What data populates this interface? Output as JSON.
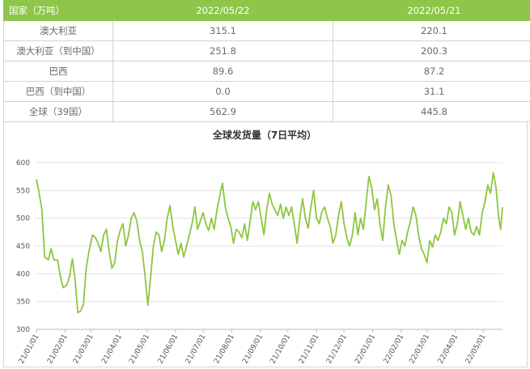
{
  "table": {
    "headers": [
      "国家（万吨）",
      "2022/05/22",
      "2022/05/21"
    ],
    "rows": [
      [
        "澳大利亚",
        "315.1",
        "220.1"
      ],
      [
        "澳大利亚（到中国）",
        "251.8",
        "200.3"
      ],
      [
        "巴西",
        "89.6",
        "87.2"
      ],
      [
        "巴西（到中国）",
        "0.0",
        "31.1"
      ],
      [
        "全球（39国）",
        "562.9",
        "445.8"
      ]
    ]
  },
  "colors": {
    "header_bg": "#8dc649",
    "line": "#8dc63f",
    "grid": "#e3e3e3"
  },
  "chart_data": {
    "type": "line",
    "title": "全球发货量（7日平均）",
    "xlabel": "",
    "ylabel": "",
    "ylim": [
      300,
      600
    ],
    "yticks": [
      300,
      350,
      400,
      450,
      500,
      550,
      600
    ],
    "x_tick_labels": [
      "21/01/01",
      "21/02/01",
      "21/03/01",
      "21/04/01",
      "21/05/01",
      "21/06/01",
      "21/07/01",
      "21/08/01",
      "21/09/01",
      "21/10/01",
      "21/11/01",
      "21/12/01",
      "22/01/01",
      "22/02/01",
      "22/03/01",
      "22/04/01",
      "22/05/01"
    ],
    "grid": true,
    "x_range": [
      "2021-01-01",
      "2022-05-22"
    ],
    "series": [
      {
        "values": [
          [
            "2021-01-01",
            570
          ],
          [
            "2021-01-04",
            545
          ],
          [
            "2021-01-07",
            515
          ],
          [
            "2021-01-10",
            430
          ],
          [
            "2021-01-14",
            425
          ],
          [
            "2021-01-17",
            445
          ],
          [
            "2021-01-20",
            425
          ],
          [
            "2021-01-24",
            425
          ],
          [
            "2021-01-27",
            395
          ],
          [
            "2021-01-30",
            375
          ],
          [
            "2021-02-03",
            380
          ],
          [
            "2021-02-06",
            395
          ],
          [
            "2021-02-09",
            427
          ],
          [
            "2021-02-12",
            390
          ],
          [
            "2021-02-15",
            330
          ],
          [
            "2021-02-18",
            333
          ],
          [
            "2021-02-21",
            345
          ],
          [
            "2021-02-24",
            410
          ],
          [
            "2021-02-27",
            440
          ],
          [
            "2021-03-03",
            470
          ],
          [
            "2021-03-06",
            465
          ],
          [
            "2021-03-09",
            455
          ],
          [
            "2021-03-12",
            440
          ],
          [
            "2021-03-15",
            470
          ],
          [
            "2021-03-18",
            480
          ],
          [
            "2021-03-21",
            440
          ],
          [
            "2021-03-24",
            410
          ],
          [
            "2021-03-27",
            420
          ],
          [
            "2021-03-30",
            460
          ],
          [
            "2021-04-02",
            478
          ],
          [
            "2021-04-05",
            490
          ],
          [
            "2021-04-08",
            450
          ],
          [
            "2021-04-11",
            470
          ],
          [
            "2021-04-14",
            500
          ],
          [
            "2021-04-17",
            510
          ],
          [
            "2021-04-20",
            495
          ],
          [
            "2021-04-23",
            460
          ],
          [
            "2021-04-26",
            440
          ],
          [
            "2021-04-29",
            395
          ],
          [
            "2021-05-02",
            343
          ],
          [
            "2021-05-05",
            395
          ],
          [
            "2021-05-08",
            450
          ],
          [
            "2021-05-11",
            475
          ],
          [
            "2021-05-14",
            470
          ],
          [
            "2021-05-17",
            440
          ],
          [
            "2021-05-20",
            460
          ],
          [
            "2021-05-23",
            500
          ],
          [
            "2021-05-26",
            523
          ],
          [
            "2021-05-29",
            485
          ],
          [
            "2021-06-01",
            460
          ],
          [
            "2021-06-04",
            435
          ],
          [
            "2021-06-07",
            455
          ],
          [
            "2021-06-10",
            430
          ],
          [
            "2021-06-13",
            450
          ],
          [
            "2021-06-16",
            470
          ],
          [
            "2021-06-19",
            490
          ],
          [
            "2021-06-22",
            520
          ],
          [
            "2021-06-25",
            480
          ],
          [
            "2021-06-28",
            495
          ],
          [
            "2021-07-01",
            510
          ],
          [
            "2021-07-04",
            490
          ],
          [
            "2021-07-07",
            478
          ],
          [
            "2021-07-10",
            500
          ],
          [
            "2021-07-13",
            480
          ],
          [
            "2021-07-16",
            515
          ],
          [
            "2021-07-19",
            540
          ],
          [
            "2021-07-22",
            563
          ],
          [
            "2021-07-25",
            520
          ],
          [
            "2021-07-28",
            500
          ],
          [
            "2021-07-31",
            485
          ],
          [
            "2021-08-03",
            455
          ],
          [
            "2021-08-06",
            480
          ],
          [
            "2021-08-09",
            475
          ],
          [
            "2021-08-12",
            465
          ],
          [
            "2021-08-15",
            490
          ],
          [
            "2021-08-18",
            460
          ],
          [
            "2021-08-21",
            495
          ],
          [
            "2021-08-24",
            530
          ],
          [
            "2021-08-27",
            515
          ],
          [
            "2021-08-30",
            530
          ],
          [
            "2021-09-02",
            500
          ],
          [
            "2021-09-05",
            470
          ],
          [
            "2021-09-08",
            515
          ],
          [
            "2021-09-11",
            545
          ],
          [
            "2021-09-14",
            525
          ],
          [
            "2021-09-17",
            515
          ],
          [
            "2021-09-20",
            505
          ],
          [
            "2021-09-23",
            525
          ],
          [
            "2021-09-26",
            500
          ],
          [
            "2021-09-29",
            520
          ],
          [
            "2021-10-02",
            505
          ],
          [
            "2021-10-05",
            520
          ],
          [
            "2021-10-08",
            490
          ],
          [
            "2021-10-11",
            455
          ],
          [
            "2021-10-14",
            500
          ],
          [
            "2021-10-17",
            535
          ],
          [
            "2021-10-20",
            500
          ],
          [
            "2021-10-23",
            482
          ],
          [
            "2021-10-26",
            520
          ],
          [
            "2021-10-29",
            550
          ],
          [
            "2021-11-01",
            500
          ],
          [
            "2021-11-04",
            490
          ],
          [
            "2021-11-07",
            512
          ],
          [
            "2021-11-10",
            520
          ],
          [
            "2021-11-13",
            500
          ],
          [
            "2021-11-16",
            485
          ],
          [
            "2021-11-19",
            455
          ],
          [
            "2021-11-22",
            470
          ],
          [
            "2021-11-25",
            505
          ],
          [
            "2021-11-28",
            530
          ],
          [
            "2021-12-01",
            490
          ],
          [
            "2021-12-04",
            465
          ],
          [
            "2021-12-07",
            450
          ],
          [
            "2021-12-10",
            470
          ],
          [
            "2021-12-13",
            510
          ],
          [
            "2021-12-16",
            470
          ],
          [
            "2021-12-19",
            500
          ],
          [
            "2021-12-22",
            480
          ],
          [
            "2021-12-25",
            528
          ],
          [
            "2021-12-28",
            575
          ],
          [
            "2021-12-31",
            555
          ],
          [
            "2022-01-03",
            515
          ],
          [
            "2022-01-06",
            535
          ],
          [
            "2022-01-09",
            490
          ],
          [
            "2022-01-12",
            460
          ],
          [
            "2022-01-15",
            520
          ],
          [
            "2022-01-18",
            560
          ],
          [
            "2022-01-21",
            540
          ],
          [
            "2022-01-24",
            490
          ],
          [
            "2022-01-27",
            460
          ],
          [
            "2022-01-30",
            435
          ],
          [
            "2022-02-02",
            460
          ],
          [
            "2022-02-05",
            450
          ],
          [
            "2022-02-08",
            475
          ],
          [
            "2022-02-11",
            495
          ],
          [
            "2022-02-14",
            520
          ],
          [
            "2022-02-17",
            505
          ],
          [
            "2022-02-20",
            470
          ],
          [
            "2022-02-23",
            445
          ],
          [
            "2022-02-26",
            435
          ],
          [
            "2022-03-01",
            420
          ],
          [
            "2022-03-04",
            460
          ],
          [
            "2022-03-07",
            448
          ],
          [
            "2022-03-10",
            470
          ],
          [
            "2022-03-13",
            460
          ],
          [
            "2022-03-16",
            475
          ],
          [
            "2022-03-19",
            500
          ],
          [
            "2022-03-22",
            490
          ],
          [
            "2022-03-25",
            520
          ],
          [
            "2022-03-28",
            510
          ],
          [
            "2022-03-31",
            470
          ],
          [
            "2022-04-03",
            490
          ],
          [
            "2022-04-06",
            530
          ],
          [
            "2022-04-09",
            505
          ],
          [
            "2022-04-12",
            480
          ],
          [
            "2022-04-15",
            500
          ],
          [
            "2022-04-18",
            475
          ],
          [
            "2022-04-21",
            470
          ],
          [
            "2022-04-24",
            485
          ],
          [
            "2022-04-27",
            470
          ],
          [
            "2022-04-30",
            510
          ],
          [
            "2022-05-03",
            530
          ],
          [
            "2022-05-06",
            560
          ],
          [
            "2022-05-09",
            545
          ],
          [
            "2022-05-12",
            582
          ],
          [
            "2022-05-15",
            555
          ],
          [
            "2022-05-18",
            500
          ],
          [
            "2022-05-20",
            480
          ],
          [
            "2022-05-22",
            520
          ]
        ]
      }
    ]
  }
}
